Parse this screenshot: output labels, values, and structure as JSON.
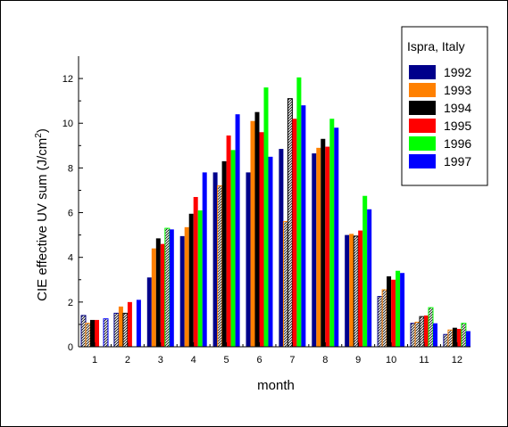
{
  "chart_data": {
    "type": "bar",
    "xlabel": "month",
    "ylabel": "CIE effective UV sum (J/cm²)",
    "ylabel_parts": [
      "CIE effective UV sum (J/cm",
      "2",
      ")"
    ],
    "ylim": [
      0,
      13
    ],
    "yticks": [
      0,
      2,
      4,
      6,
      8,
      10,
      12
    ],
    "categories": [
      "1",
      "2",
      "3",
      "4",
      "5",
      "6",
      "7",
      "8",
      "9",
      "10",
      "11",
      "12"
    ],
    "legend_title": "Ispra, Italy",
    "legend_position": "top-right",
    "grid": false,
    "series": [
      {
        "name": "1992",
        "color": "#00008b",
        "values": [
          1.4,
          1.5,
          3.1,
          4.95,
          7.8,
          7.8,
          8.85,
          8.65,
          5.0,
          2.25,
          1.05,
          0.55
        ],
        "hatched": [
          true,
          true,
          false,
          false,
          false,
          false,
          false,
          false,
          false,
          true,
          true,
          true
        ]
      },
      {
        "name": "1993",
        "color": "#ff8000",
        "values": [
          1.05,
          1.8,
          4.4,
          5.35,
          7.2,
          10.1,
          5.6,
          8.9,
          5.05,
          2.55,
          1.1,
          0.75
        ],
        "hatched": [
          true,
          false,
          false,
          false,
          true,
          false,
          true,
          false,
          false,
          true,
          true,
          true
        ]
      },
      {
        "name": "1994",
        "color": "#000000",
        "values": [
          1.2,
          1.5,
          4.85,
          5.95,
          8.3,
          10.5,
          11.1,
          9.3,
          4.95,
          3.15,
          1.35,
          0.85
        ],
        "hatched": [
          false,
          true,
          false,
          false,
          false,
          false,
          true,
          false,
          true,
          false,
          true,
          false
        ]
      },
      {
        "name": "1995",
        "color": "#ff0000",
        "values": [
          1.2,
          2.0,
          4.6,
          6.7,
          9.45,
          9.6,
          10.2,
          8.95,
          5.2,
          3.0,
          1.4,
          0.8
        ],
        "hatched": [
          false,
          false,
          false,
          false,
          false,
          false,
          false,
          false,
          false,
          false,
          false,
          false
        ]
      },
      {
        "name": "1996",
        "color": "#00ff00",
        "values": [
          null,
          null,
          5.3,
          6.1,
          8.8,
          11.6,
          12.05,
          10.2,
          6.75,
          3.4,
          1.75,
          1.05
        ],
        "hatched": [
          false,
          false,
          true,
          false,
          false,
          false,
          false,
          false,
          false,
          false,
          true,
          true
        ]
      },
      {
        "name": "1997",
        "color": "#0000ff",
        "values": [
          1.25,
          2.1,
          5.25,
          7.8,
          10.4,
          8.5,
          10.8,
          9.8,
          6.15,
          3.3,
          1.05,
          0.7
        ],
        "hatched": [
          true,
          false,
          false,
          false,
          false,
          false,
          false,
          false,
          false,
          false,
          false,
          false
        ]
      }
    ]
  }
}
